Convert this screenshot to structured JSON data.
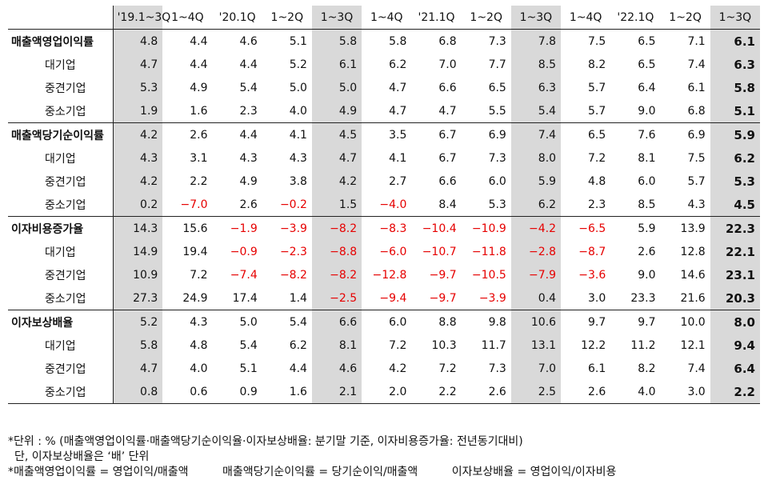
{
  "table": {
    "columns": [
      "'19.1~3Q",
      "1~4Q",
      "'20.1Q",
      "1~2Q",
      "1~3Q",
      "1~4Q",
      "'21.1Q",
      "1~2Q",
      "1~3Q",
      "1~4Q",
      "'22.1Q",
      "1~2Q",
      "1~3Q"
    ],
    "highlight_columns": [
      0,
      4,
      8,
      12
    ],
    "groups": [
      {
        "label": "매출액영업이익률",
        "rows": [
          {
            "label": "",
            "values": [
              "4.8",
              "4.4",
              "4.6",
              "5.1",
              "5.8",
              "5.8",
              "6.8",
              "7.3",
              "7.8",
              "7.5",
              "6.5",
              "7.1",
              "6.1"
            ]
          },
          {
            "label": "대기업",
            "values": [
              "4.7",
              "4.4",
              "4.4",
              "5.2",
              "6.1",
              "6.2",
              "7.0",
              "7.7",
              "8.5",
              "8.2",
              "6.5",
              "7.4",
              "6.3"
            ]
          },
          {
            "label": "중견기업",
            "values": [
              "5.3",
              "4.9",
              "5.4",
              "5.0",
              "5.0",
              "4.7",
              "6.6",
              "6.5",
              "6.3",
              "5.7",
              "6.4",
              "6.1",
              "5.8"
            ]
          },
          {
            "label": "중소기업",
            "values": [
              "1.9",
              "1.6",
              "2.3",
              "4.0",
              "4.9",
              "4.7",
              "4.7",
              "5.5",
              "5.4",
              "5.7",
              "9.0",
              "6.8",
              "5.1"
            ]
          }
        ]
      },
      {
        "label": "매출액당기순이익률",
        "rows": [
          {
            "label": "",
            "values": [
              "4.2",
              "2.6",
              "4.4",
              "4.1",
              "4.5",
              "3.5",
              "6.7",
              "6.9",
              "7.4",
              "6.5",
              "7.6",
              "6.9",
              "5.9"
            ]
          },
          {
            "label": "대기업",
            "values": [
              "4.3",
              "3.1",
              "4.3",
              "4.3",
              "4.7",
              "4.1",
              "6.7",
              "7.3",
              "8.0",
              "7.2",
              "8.1",
              "7.5",
              "6.2"
            ]
          },
          {
            "label": "중견기업",
            "values": [
              "4.2",
              "2.2",
              "4.9",
              "3.8",
              "4.2",
              "2.7",
              "6.6",
              "6.0",
              "5.9",
              "4.8",
              "6.0",
              "5.7",
              "5.3"
            ]
          },
          {
            "label": "중소기업",
            "values": [
              "0.2",
              "−7.0",
              "2.6",
              "−0.2",
              "1.5",
              "−4.0",
              "8.4",
              "5.3",
              "6.2",
              "2.3",
              "8.5",
              "4.3",
              "4.5"
            ]
          }
        ]
      },
      {
        "label": "이자비용증가율",
        "rows": [
          {
            "label": "",
            "values": [
              "14.3",
              "15.6",
              "−1.9",
              "−3.9",
              "−8.2",
              "−8.3",
              "−10.4",
              "−10.9",
              "−4.2",
              "−6.5",
              "5.9",
              "13.9",
              "22.3"
            ]
          },
          {
            "label": "대기업",
            "values": [
              "14.9",
              "19.4",
              "−0.9",
              "−2.3",
              "−8.8",
              "−6.0",
              "−10.7",
              "−11.8",
              "−2.8",
              "−8.7",
              "2.6",
              "12.8",
              "22.1"
            ]
          },
          {
            "label": "중견기업",
            "values": [
              "10.9",
              "7.2",
              "−7.4",
              "−8.2",
              "−8.2",
              "−12.8",
              "−9.7",
              "−10.5",
              "−7.9",
              "−3.6",
              "9.0",
              "14.6",
              "23.1"
            ]
          },
          {
            "label": "중소기업",
            "values": [
              "27.3",
              "24.9",
              "17.4",
              "1.4",
              "−2.5",
              "−9.4",
              "−9.7",
              "−3.9",
              "0.4",
              "3.0",
              "23.3",
              "21.6",
              "20.3"
            ]
          }
        ]
      },
      {
        "label": "이자보상배율",
        "rows": [
          {
            "label": "",
            "values": [
              "5.2",
              "4.3",
              "5.0",
              "5.4",
              "6.6",
              "6.0",
              "8.8",
              "9.8",
              "10.6",
              "9.7",
              "9.7",
              "10.0",
              "8.0"
            ]
          },
          {
            "label": "대기업",
            "values": [
              "5.8",
              "4.8",
              "5.4",
              "6.2",
              "8.1",
              "7.2",
              "10.3",
              "11.7",
              "13.1",
              "12.2",
              "11.2",
              "12.1",
              "9.4"
            ]
          },
          {
            "label": "중견기업",
            "values": [
              "4.7",
              "4.0",
              "5.1",
              "4.4",
              "4.6",
              "4.2",
              "7.2",
              "7.3",
              "7.0",
              "6.1",
              "8.2",
              "7.4",
              "6.4"
            ]
          },
          {
            "label": "중소기업",
            "values": [
              "0.8",
              "0.6",
              "0.9",
              "1.6",
              "2.1",
              "2.0",
              "2.2",
              "2.6",
              "2.5",
              "2.6",
              "4.0",
              "3.0",
              "2.2"
            ]
          }
        ]
      }
    ]
  },
  "notes": {
    "line1": "*단위 : % (매출액영업이익률·매출액당기순이익율·이자보상배율: 분기말 기준, 이자비용증가율: 전년동기대비)",
    "line2": "단, 이자보상배율은 ‘배’ 단위",
    "formula1": "*매출액영업이익률 = 영업이익/매출액",
    "formula2": "매출액당기순이익률 = 당기순이익/매출액",
    "formula3": "이자보상배율 = 영업이익/이자비용"
  },
  "colors": {
    "negative": "#e60000",
    "highlight": "#d9d9d9"
  }
}
